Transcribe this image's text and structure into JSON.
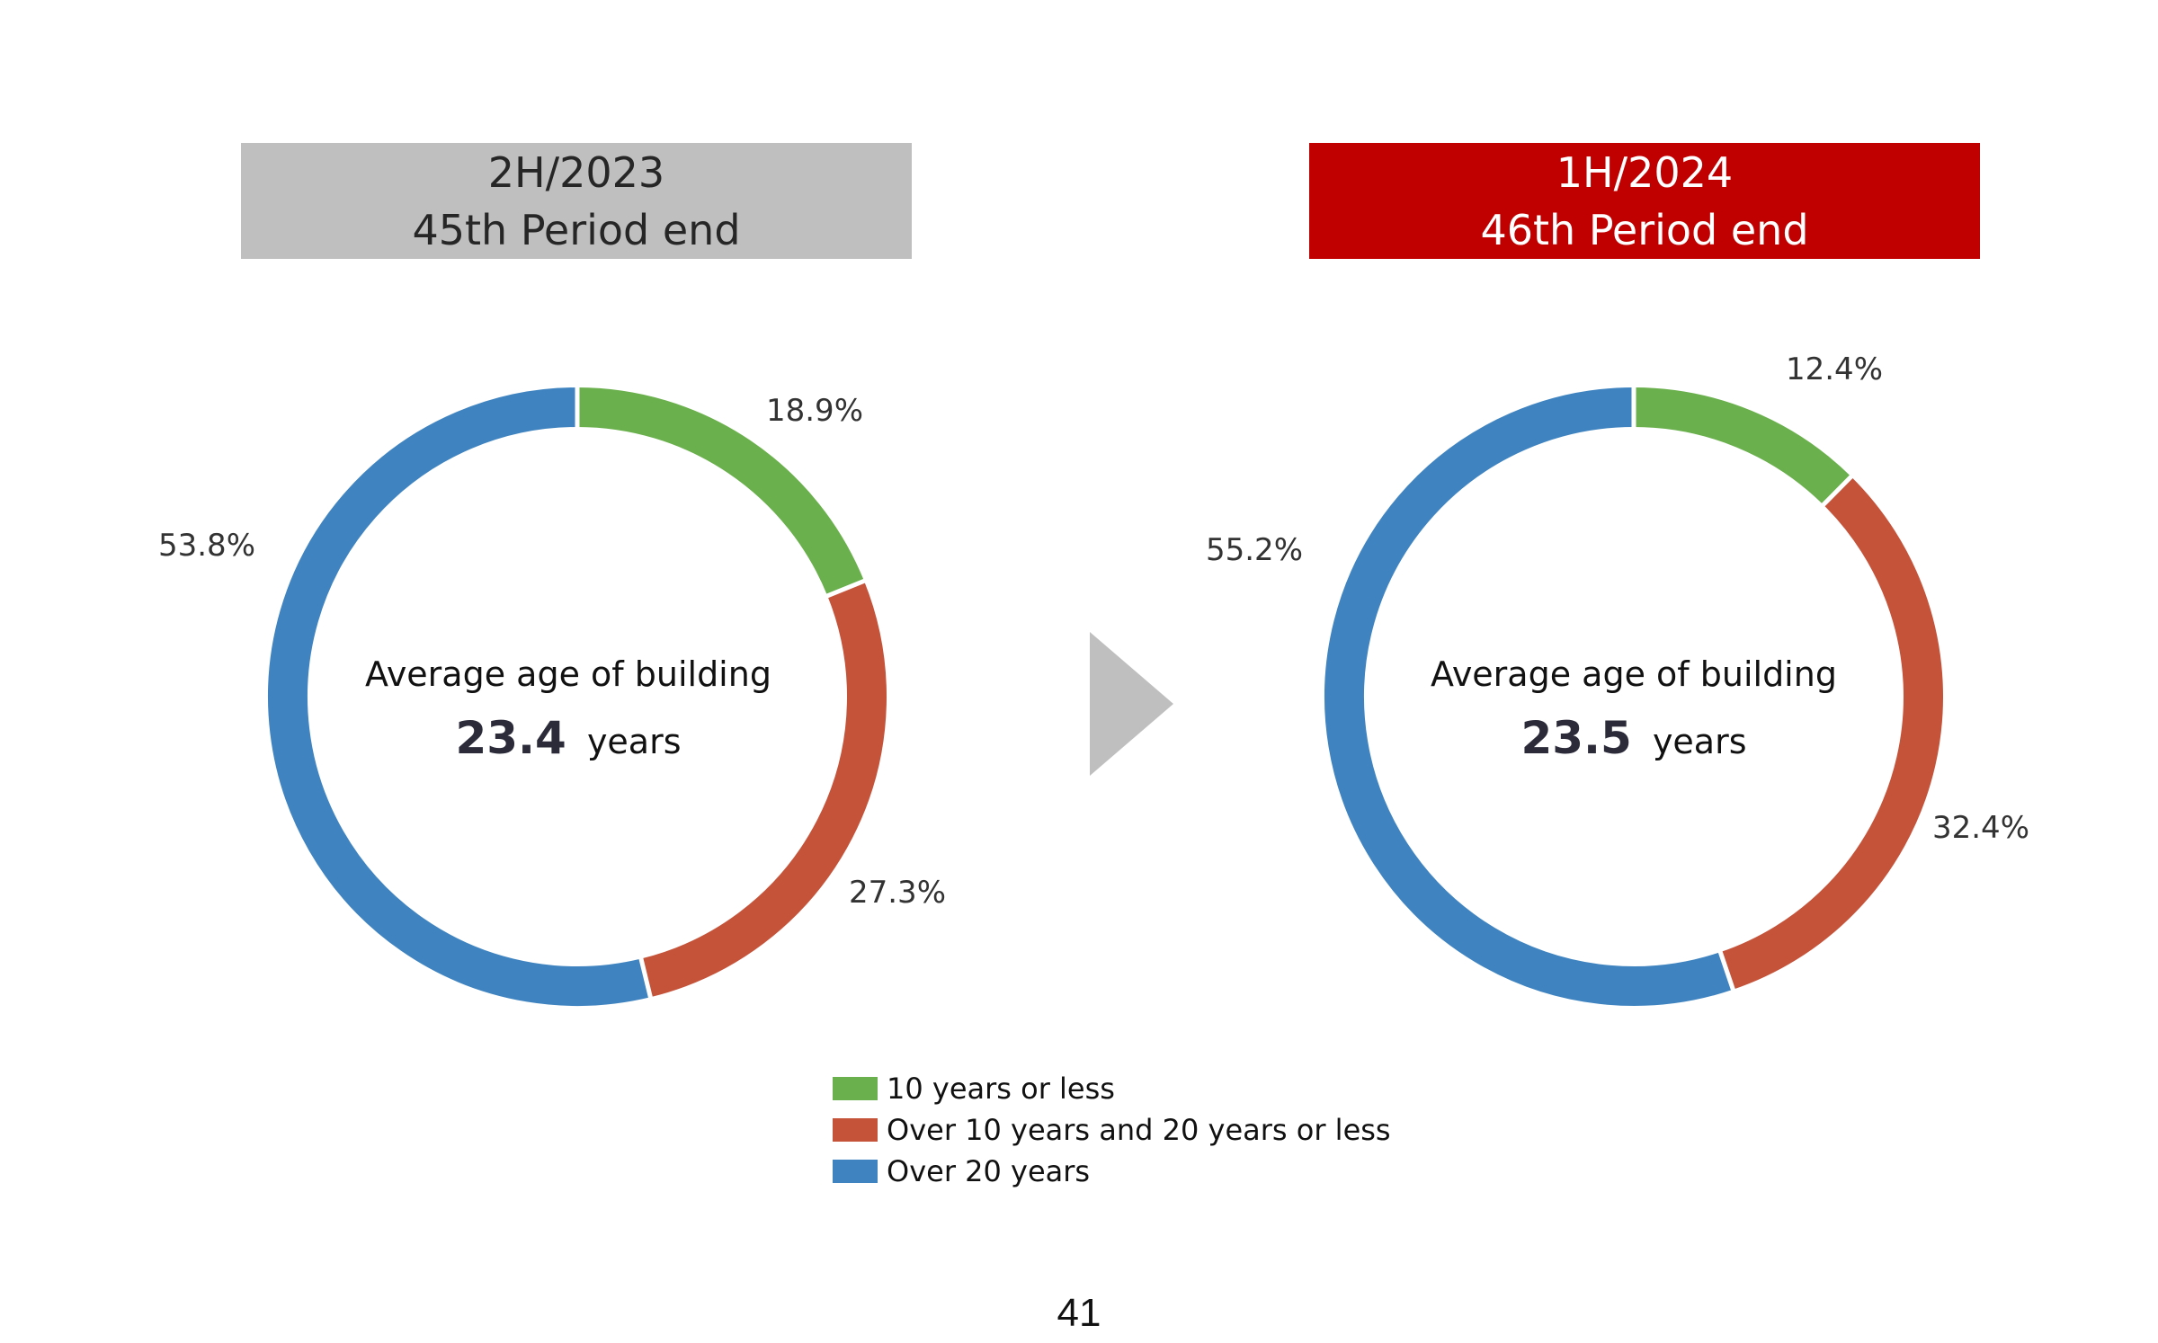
{
  "panels": [
    {
      "period": "2H/2023",
      "label": "45th Period end",
      "center_title": "Average age of building",
      "center_value": "23.4",
      "center_unit": "years"
    },
    {
      "period": "1H/2024",
      "label": "46th Period end",
      "center_title": "Average age of building",
      "center_value": "23.5",
      "center_unit": "years"
    }
  ],
  "colors": {
    "green": "#6ab04c",
    "red": "#c5533a",
    "blue": "#3f84c0",
    "arrow": "#bfbfbf",
    "header_left": "#bfbfbf",
    "header_right": "#c00000"
  },
  "chart_data": [
    {
      "type": "pie",
      "title": "2H/2023 45th Period end",
      "categories": [
        "10 years or less",
        "Over 10 years and 20 years or less",
        "Over 20 years"
      ],
      "values": [
        18.9,
        27.3,
        53.8
      ],
      "labels": [
        "18.9%",
        "27.3%",
        "53.8%"
      ],
      "legend": "bottom-center"
    },
    {
      "type": "pie",
      "title": "1H/2024 46th Period end",
      "categories": [
        "10 years or less",
        "Over 10 years and 20 years or less",
        "Over 20 years"
      ],
      "values": [
        12.4,
        32.4,
        55.2
      ],
      "labels": [
        "12.4%",
        "32.4%",
        "55.2%"
      ],
      "legend": "bottom-center"
    }
  ],
  "legend": [
    {
      "label": "10 years or less",
      "color": "#6ab04c"
    },
    {
      "label": "Over 10 years and 20 years or less",
      "color": "#c5533a"
    },
    {
      "label": "Over 20 years",
      "color": "#3f84c0"
    }
  ],
  "page_number": "41"
}
